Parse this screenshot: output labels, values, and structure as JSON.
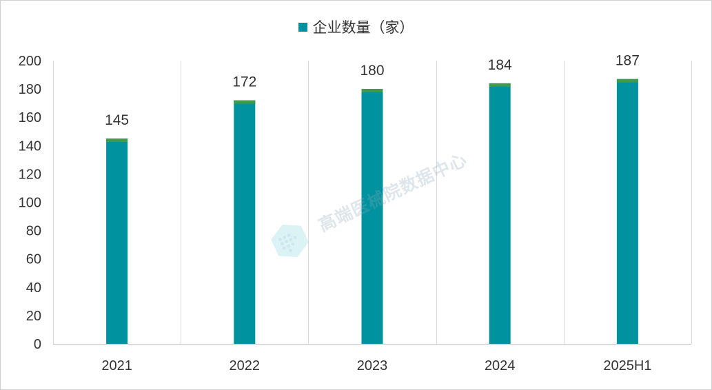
{
  "chart_data": {
    "type": "bar",
    "categories": [
      "2021",
      "2022",
      "2023",
      "2024",
      "2025H1"
    ],
    "series": [
      {
        "name": "企业数量（家）",
        "values": [
          145,
          172,
          180,
          184,
          187
        ],
        "color": "#00929f",
        "cap_color": "#3f9b4a"
      }
    ],
    "data_labels": [
      "145",
      "172",
      "180",
      "184",
      "187"
    ],
    "ylim": [
      0,
      200
    ],
    "yticks": [
      "0",
      "20",
      "40",
      "60",
      "80",
      "100",
      "120",
      "140",
      "160",
      "180",
      "200"
    ],
    "grid": "vertical-separators",
    "legend_position": "top-center",
    "title": "",
    "xlabel": "",
    "ylabel": ""
  },
  "legend": {
    "label": "企业数量（家）"
  },
  "watermark": {
    "text": "高端医械院数据中心"
  }
}
